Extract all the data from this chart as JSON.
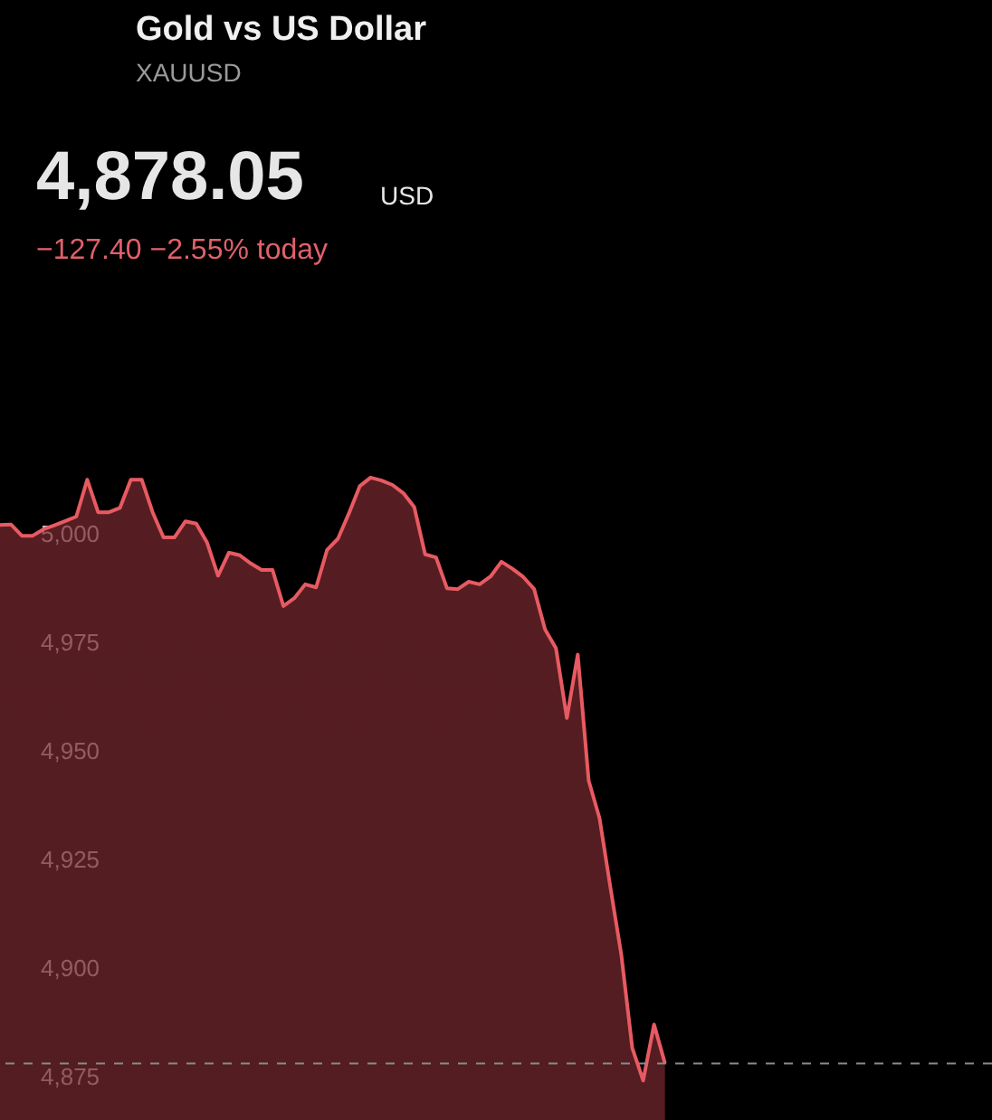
{
  "chart_data": {
    "type": "area",
    "title": "Gold vs US Dollar",
    "subtitle": "XAUUSD",
    "annotations": [
      "4,878.05",
      "USD",
      "−127.40 −2.55% today"
    ],
    "categories": [
      null,
      null,
      null,
      null,
      null,
      null,
      null,
      null,
      null,
      null,
      null,
      null,
      null,
      null,
      null,
      null,
      null,
      null,
      null,
      null,
      null,
      null,
      null,
      null,
      null,
      null,
      null,
      null,
      null,
      null,
      null,
      null,
      null,
      null,
      null,
      null,
      null,
      null,
      null,
      null,
      null,
      null,
      null,
      null,
      null,
      null,
      null,
      null,
      null,
      null,
      null,
      null,
      null,
      null,
      null,
      null,
      null,
      null,
      null,
      null,
      null,
      null,
      null,
      null,
      null,
      null,
      null,
      null,
      null,
      null,
      null,
      null,
      null,
      null,
      null,
      null,
      null,
      null,
      null,
      null,
      null,
      null,
      null,
      null,
      null,
      null,
      null,
      null,
      null,
      null,
      null,
      null
    ],
    "series": [
      {
        "color": "#e85a62",
        "values": [
          5002.1,
          5002.2,
          4999.6,
          4999.6,
          5001.1,
          5002.0,
          5003.0,
          5004.0,
          5012.5,
          5005.0,
          5005.0,
          5006.0,
          5012.5,
          5012.5,
          5005.0,
          4999.2,
          4999.2,
          5002.9,
          5002.4,
          4998.0,
          4990.4,
          4995.7,
          4995.1,
          4993.2,
          4991.7,
          4991.7,
          4983.4,
          4985.2,
          4988.4,
          4987.7,
          4996.3,
          4998.9,
          5004.7,
          5011.0,
          5013.0,
          5012.3,
          5011.3,
          5009.4,
          5006.2,
          4995.3,
          4994.6,
          4987.5,
          4987.3,
          4989.0,
          4988.4,
          4990.2,
          4993.6,
          4992.0,
          4990.1,
          4987.3,
          4978.0,
          4973.7,
          4957.6,
          4972.2,
          4943.2,
          4934.5,
          4918.5,
          4903.0,
          4881.6,
          4874.1,
          4887.0,
          4878.05,
          null,
          null,
          null,
          null,
          null,
          null,
          null,
          null,
          null,
          null,
          null,
          null,
          null,
          null,
          null,
          null,
          null,
          null,
          null,
          null,
          null,
          null,
          null,
          null,
          null,
          null,
          null,
          null,
          null,
          null
        ]
      }
    ],
    "ylim": [
      4865,
      5123
    ],
    "yticks": [
      {
        "value": 4875,
        "label": "4,875"
      },
      {
        "value": 4900,
        "label": "4,900"
      },
      {
        "value": 4925,
        "label": "4,925"
      },
      {
        "value": 4950,
        "label": "4,950"
      },
      {
        "value": 4975,
        "label": "4,975"
      },
      {
        "value": 5000,
        "label": "5,000"
      }
    ],
    "tick_labels": "y",
    "grid": false,
    "line_style": "solid",
    "marker": "none",
    "ref_lines": [
      {
        "axis": "y",
        "value": 4878.05,
        "color": "#8a8a8a",
        "line_style": "dashed"
      }
    ]
  }
}
